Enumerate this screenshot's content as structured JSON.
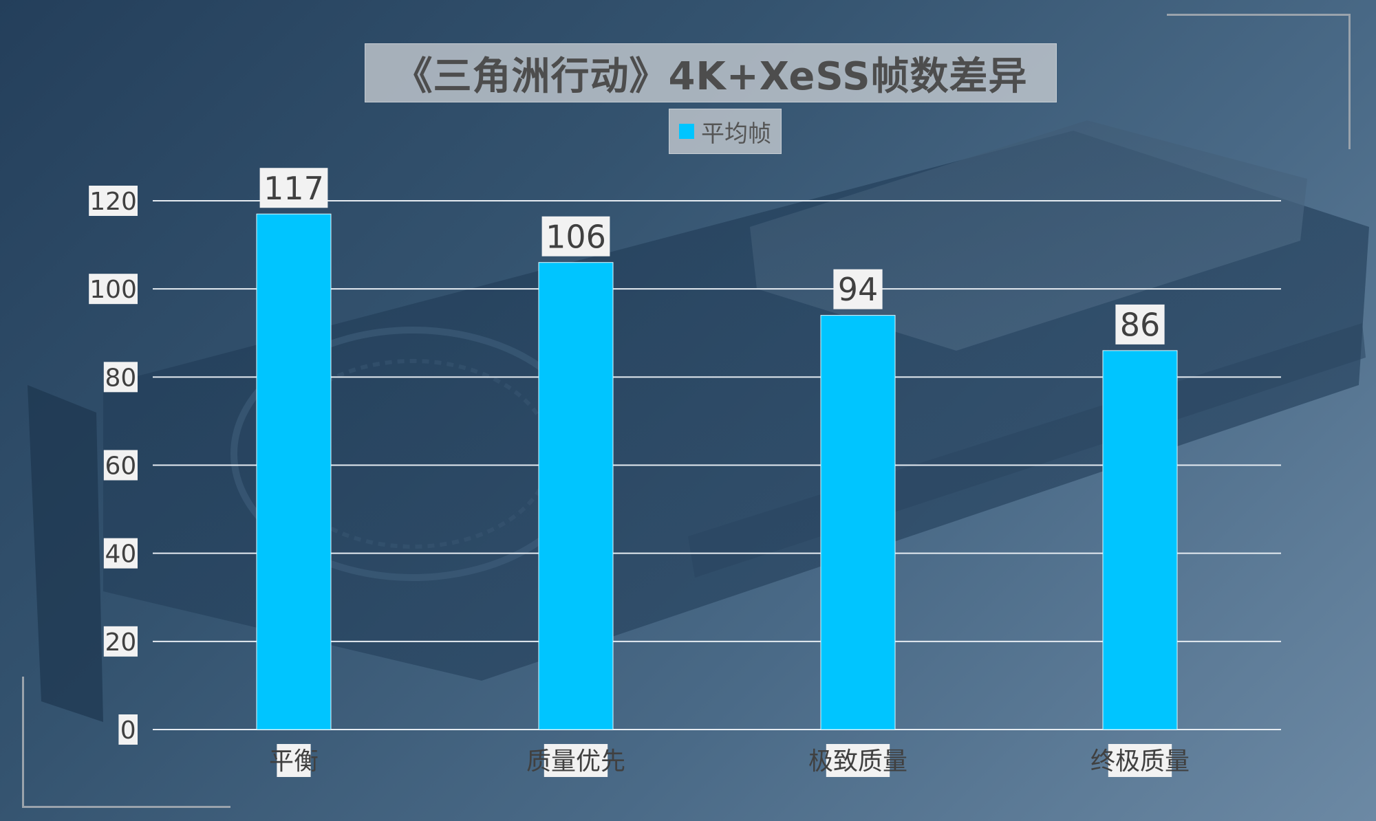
{
  "chart_data": {
    "type": "bar",
    "title": "《三角洲行动》4K+XeSS帧数差异",
    "categories": [
      "平衡",
      "质量优先",
      "极致质量",
      "终极质量"
    ],
    "series": [
      {
        "name": "平均帧",
        "values": [
          117,
          106,
          94,
          86
        ]
      }
    ],
    "ylim": [
      0,
      120
    ],
    "yticks": [
      0,
      20,
      40,
      60,
      80,
      100,
      120
    ],
    "grid": true,
    "legend": "top-center",
    "data_labels": true,
    "colors": {
      "bar": "#00c5ff",
      "gridline": "#e6ecf2",
      "label_bg": "#f2f2f2",
      "label_text": "#404040"
    }
  }
}
